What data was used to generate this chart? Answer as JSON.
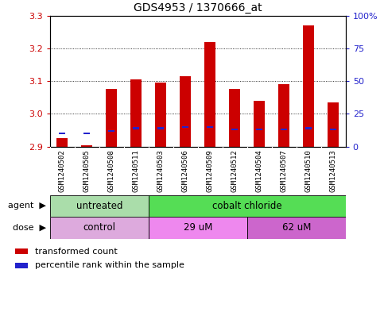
{
  "title": "GDS4953 / 1370666_at",
  "samples": [
    "GSM1240502",
    "GSM1240505",
    "GSM1240508",
    "GSM1240511",
    "GSM1240503",
    "GSM1240506",
    "GSM1240509",
    "GSM1240512",
    "GSM1240504",
    "GSM1240507",
    "GSM1240510",
    "GSM1240513"
  ],
  "transformed_count": [
    2.925,
    2.905,
    3.075,
    3.105,
    3.095,
    3.115,
    3.22,
    3.075,
    3.04,
    3.09,
    3.27,
    3.035
  ],
  "percentile_rank": [
    10,
    10,
    12,
    14,
    14,
    15,
    15,
    13,
    13,
    13,
    14,
    13
  ],
  "base": 2.9,
  "ylim_left": [
    2.9,
    3.3
  ],
  "ylim_right": [
    0,
    100
  ],
  "yticks_left": [
    2.9,
    3.0,
    3.1,
    3.2,
    3.3
  ],
  "yticks_right": [
    0,
    25,
    50,
    75,
    100
  ],
  "ytick_labels_right": [
    "0",
    "25",
    "50",
    "75",
    "100%"
  ],
  "bar_color": "#cc0000",
  "blue_color": "#2222cc",
  "agent_groups": [
    {
      "label": "untreated",
      "start": 0,
      "end": 4,
      "color": "#aaddaa"
    },
    {
      "label": "cobalt chloride",
      "start": 4,
      "end": 12,
      "color": "#55dd55"
    }
  ],
  "dose_groups": [
    {
      "label": "control",
      "start": 0,
      "end": 4,
      "color": "#ddaadd"
    },
    {
      "label": "29 uM",
      "start": 4,
      "end": 8,
      "color": "#ee88ee"
    },
    {
      "label": "62 uM",
      "start": 8,
      "end": 12,
      "color": "#cc66cc"
    }
  ],
  "legend_items": [
    {
      "label": "transformed count",
      "color": "#cc0000"
    },
    {
      "label": "percentile rank within the sample",
      "color": "#2222cc"
    }
  ],
  "bar_width": 0.45,
  "left_tick_color": "#cc0000",
  "right_tick_color": "#2222cc",
  "plot_bg_color": "#ffffff",
  "fig_bg_color": "#ffffff",
  "grid_color": "#000000",
  "xtick_bg_color": "#cccccc"
}
